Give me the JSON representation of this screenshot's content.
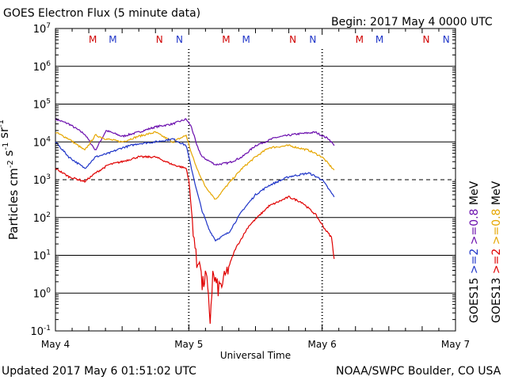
{
  "header": {
    "title": "GOES Electron Flux (5 minute data)",
    "begin": "Begin: 2017 May 4 0000 UTC"
  },
  "footer": {
    "updated": "Updated 2017 May  6 01:51:02 UTC",
    "source": "NOAA/SWPC Boulder, CO USA"
  },
  "colors": {
    "goes15_08": "#6a0dad",
    "goes13_08": "#e6a600",
    "goes15_2": "#1f35c8",
    "goes13_2": "#e00000",
    "m_marker": "#d00000",
    "m2_marker": "#1f35c8",
    "n_marker": "#d00000",
    "n2_marker": "#1f35c8"
  },
  "chart_data": {
    "type": "line",
    "title": "GOES Electron Flux (5 minute data)",
    "xlabel": "Universal Time",
    "ylabel": "Particles cm^-2 s^-1 sr^-1",
    "yscale": "log",
    "ylim_exponent": [
      -1,
      7
    ],
    "xlim_days": [
      0,
      3
    ],
    "x_tick_labels": [
      "May 4",
      "May 5",
      "May 6",
      "May 7"
    ],
    "y_tick_labels": [
      "10^-1",
      "10^0",
      "10^1",
      "10^2",
      "10^3",
      "10^4",
      "10^5",
      "10^6",
      "10^7"
    ],
    "alert_threshold": 1000,
    "grid": true,
    "markers": [
      {
        "label": "M",
        "day": 0.35,
        "color": "#d00000"
      },
      {
        "label": "M",
        "day": 0.5,
        "color": "#1f35c8"
      },
      {
        "label": "N",
        "day": 0.85,
        "color": "#d00000"
      },
      {
        "label": "N",
        "day": 1.0,
        "color": "#1f35c8"
      },
      {
        "label": "M",
        "day": 1.35,
        "color": "#d00000"
      },
      {
        "label": "M",
        "day": 1.5,
        "color": "#1f35c8"
      },
      {
        "label": "N",
        "day": 1.85,
        "color": "#d00000"
      },
      {
        "label": "N",
        "day": 2.0,
        "color": "#1f35c8"
      },
      {
        "label": "M",
        "day": 2.35,
        "color": "#d00000"
      },
      {
        "label": "M",
        "day": 2.5,
        "color": "#1f35c8"
      },
      {
        "label": "N",
        "day": 2.85,
        "color": "#d00000"
      },
      {
        "label": "N",
        "day": 3.0,
        "color": "#1f35c8"
      }
    ],
    "legend": [
      {
        "sat": "GOES15",
        "items": [
          {
            "text": ">=2",
            "color": "#1f35c8"
          },
          {
            "text": ">=0.8",
            "color": "#6a0dad"
          }
        ],
        "suffix": "MeV"
      },
      {
        "sat": "GOES13",
        "items": [
          {
            "text": ">=2",
            "color": "#e00000"
          },
          {
            "text": ">=0.8",
            "color": "#e6a600"
          }
        ],
        "suffix": "MeV"
      }
    ],
    "series": [
      {
        "name": "GOES15 >=0.8 MeV",
        "color": "#6a0dad",
        "x": [
          0,
          0.1,
          0.22,
          0.3,
          0.38,
          0.5,
          0.62,
          0.75,
          0.88,
          0.98,
          1.02,
          1.06,
          1.1,
          1.2,
          1.3,
          1.4,
          1.5,
          1.65,
          1.8,
          1.95,
          2.05,
          2.09
        ],
        "y": [
          40000,
          30000,
          16000,
          6000,
          20000,
          14000,
          18000,
          25000,
          30000,
          40000,
          25000,
          8000,
          4000,
          2500,
          2800,
          4000,
          8000,
          13000,
          16000,
          18000,
          12000,
          8000
        ]
      },
      {
        "name": "GOES13 >=0.8 MeV",
        "color": "#e6a600",
        "x": [
          0,
          0.1,
          0.22,
          0.3,
          0.38,
          0.5,
          0.62,
          0.75,
          0.88,
          0.98,
          1.02,
          1.06,
          1.12,
          1.2,
          1.3,
          1.4,
          1.5,
          1.6,
          1.75,
          1.9,
          2.0,
          2.09
        ],
        "y": [
          18000,
          12000,
          6000,
          15000,
          12000,
          10000,
          14000,
          18000,
          10000,
          15000,
          5000,
          2000,
          700,
          300,
          800,
          2000,
          4000,
          7000,
          8000,
          6000,
          4000,
          1800
        ]
      },
      {
        "name": "GOES15 >=2 MeV",
        "color": "#1f35c8",
        "x": [
          0,
          0.1,
          0.22,
          0.3,
          0.4,
          0.5,
          0.62,
          0.75,
          0.88,
          0.98,
          1.02,
          1.06,
          1.1,
          1.15,
          1.2,
          1.3,
          1.4,
          1.5,
          1.6,
          1.75,
          1.9,
          2.0,
          2.09
        ],
        "y": [
          10000,
          4000,
          2000,
          4000,
          5000,
          7000,
          9000,
          10000,
          12000,
          8000,
          2000,
          500,
          150,
          50,
          25,
          40,
          150,
          400,
          700,
          1200,
          1500,
          1000,
          350
        ]
      },
      {
        "name": "GOES13 >=2 MeV",
        "color": "#e00000",
        "x": [
          0,
          0.1,
          0.22,
          0.3,
          0.4,
          0.5,
          0.62,
          0.75,
          0.88,
          0.98,
          1.0,
          1.02,
          1.04,
          1.06,
          1.08,
          1.1,
          1.13,
          1.16,
          1.18,
          1.22,
          1.26,
          1.3,
          1.35,
          1.45,
          1.6,
          1.75,
          1.85,
          1.95,
          2.02,
          2.07,
          2.09
        ],
        "y": [
          2000,
          1200,
          900,
          1500,
          2500,
          3000,
          4000,
          4000,
          2500,
          2000,
          1000,
          150,
          30,
          5,
          10,
          1.5,
          3,
          0.2,
          3,
          1.3,
          2,
          5,
          15,
          60,
          200,
          350,
          250,
          120,
          50,
          30,
          8
        ]
      }
    ]
  }
}
